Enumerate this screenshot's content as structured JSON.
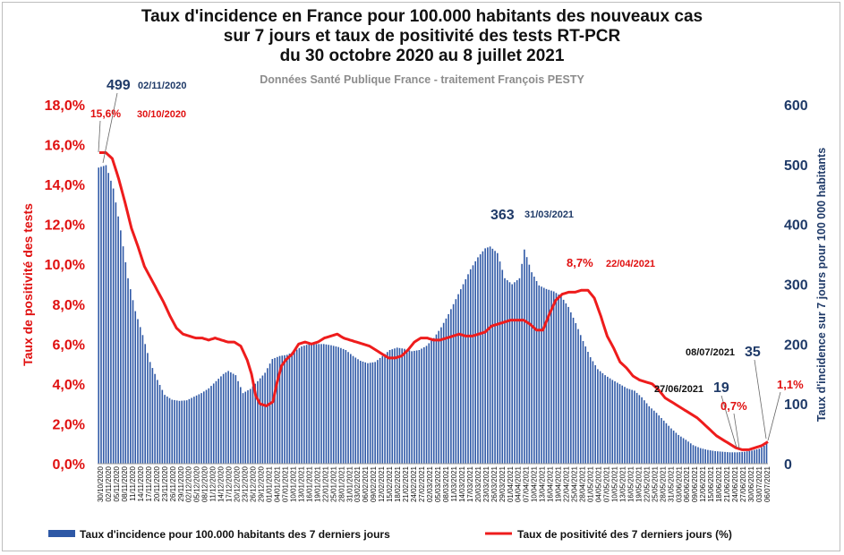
{
  "chart_data": {
    "type": "bar+line",
    "title": [
      "Taux d'incidence en France pour 100.000 habitants des nouveaux cas",
      "sur 7 jours et taux de positivité des tests RT-PCR",
      "du 30 octobre 2020 au 8 juillet 2021"
    ],
    "subtitle": "Données Santé Publique France - traitement François PESTY",
    "y_left_label": "Taux de positivité des tests",
    "y_right_label": "Taux d'incidence sur 7 jours pour 100 000 habitants",
    "y_left_ticks": [
      "0,0%",
      "2,0%",
      "4,0%",
      "6,0%",
      "8,0%",
      "10,0%",
      "12,0%",
      "14,0%",
      "16,0%",
      "18,0%"
    ],
    "y_right_ticks": [
      "0",
      "100",
      "200",
      "300",
      "400",
      "500",
      "600"
    ],
    "y_left_range": [
      0,
      18
    ],
    "y_right_range": [
      0,
      600
    ],
    "x_tick_labels": [
      "30/10/2020",
      "02/11/2020",
      "05/11/2020",
      "08/11/2020",
      "11/11/2020",
      "14/11/2020",
      "17/11/2020",
      "20/11/2020",
      "23/11/2020",
      "26/11/2020",
      "29/11/2020",
      "02/12/2020",
      "05/12/2020",
      "08/12/2020",
      "11/12/2020",
      "14/12/2020",
      "17/12/2020",
      "20/12/2020",
      "23/12/2020",
      "26/12/2020",
      "29/12/2020",
      "01/01/2021",
      "04/01/2021",
      "07/01/2021",
      "10/01/2021",
      "13/01/2021",
      "16/01/2021",
      "19/01/2021",
      "22/01/2021",
      "25/01/2021",
      "28/01/2021",
      "31/01/2021",
      "03/02/2021",
      "06/02/2021",
      "09/02/2021",
      "12/02/2021",
      "15/02/2021",
      "18/02/2021",
      "21/02/2021",
      "24/02/2021",
      "27/02/2021",
      "02/03/2021",
      "05/03/2021",
      "08/03/2021",
      "11/03/2021",
      "14/03/2021",
      "17/03/2021",
      "20/03/2021",
      "23/03/2021",
      "26/03/2021",
      "29/03/2021",
      "01/04/2021",
      "04/04/2021",
      "07/04/2021",
      "10/04/2021",
      "13/04/2021",
      "16/04/2021",
      "19/04/2021",
      "22/04/2021",
      "25/04/2021",
      "28/04/2021",
      "01/05/2021",
      "04/05/2021",
      "07/05/2021",
      "10/05/2021",
      "13/05/2021",
      "16/05/2021",
      "19/05/2021",
      "22/05/2021",
      "25/05/2021",
      "28/05/2021",
      "31/05/2021",
      "03/06/2021",
      "06/06/2021",
      "09/06/2021",
      "12/06/2021",
      "15/06/2021",
      "18/06/2021",
      "21/06/2021",
      "24/06/2021",
      "27/06/2021",
      "30/06/2021",
      "03/07/2021",
      "06/07/2021"
    ],
    "incidence_anchors": [
      [
        0,
        495
      ],
      [
        3,
        499
      ],
      [
        6,
        460
      ],
      [
        9,
        390
      ],
      [
        12,
        310
      ],
      [
        15,
        255
      ],
      [
        18,
        215
      ],
      [
        21,
        170
      ],
      [
        24,
        140
      ],
      [
        27,
        115
      ],
      [
        30,
        107
      ],
      [
        33,
        105
      ],
      [
        36,
        106
      ],
      [
        39,
        112
      ],
      [
        42,
        118
      ],
      [
        45,
        126
      ],
      [
        48,
        138
      ],
      [
        51,
        150
      ],
      [
        53,
        155
      ],
      [
        56,
        148
      ],
      [
        59,
        118
      ],
      [
        62,
        125
      ],
      [
        65,
        138
      ],
      [
        68,
        152
      ],
      [
        71,
        175
      ],
      [
        74,
        180
      ],
      [
        77,
        182
      ],
      [
        80,
        188
      ],
      [
        83,
        196
      ],
      [
        86,
        200
      ],
      [
        89,
        200
      ],
      [
        92,
        200
      ],
      [
        95,
        198
      ],
      [
        98,
        195
      ],
      [
        101,
        190
      ],
      [
        104,
        180
      ],
      [
        107,
        172
      ],
      [
        110,
        168
      ],
      [
        113,
        170
      ],
      [
        116,
        180
      ],
      [
        119,
        190
      ],
      [
        122,
        194
      ],
      [
        125,
        192
      ],
      [
        128,
        188
      ],
      [
        131,
        190
      ],
      [
        134,
        197
      ],
      [
        137,
        210
      ],
      [
        140,
        228
      ],
      [
        143,
        250
      ],
      [
        146,
        275
      ],
      [
        149,
        300
      ],
      [
        152,
        325
      ],
      [
        155,
        345
      ],
      [
        158,
        360
      ],
      [
        160,
        363
      ],
      [
        163,
        352
      ],
      [
        166,
        310
      ],
      [
        169,
        300
      ],
      [
        172,
        310
      ],
      [
        174,
        358
      ],
      [
        177,
        320
      ],
      [
        180,
        298
      ],
      [
        183,
        292
      ],
      [
        186,
        288
      ],
      [
        189,
        280
      ],
      [
        192,
        262
      ],
      [
        195,
        235
      ],
      [
        198,
        205
      ],
      [
        201,
        178
      ],
      [
        204,
        158
      ],
      [
        207,
        148
      ],
      [
        210,
        140
      ],
      [
        213,
        133
      ],
      [
        216,
        126
      ],
      [
        219,
        122
      ],
      [
        222,
        111
      ],
      [
        225,
        96
      ],
      [
        228,
        85
      ],
      [
        231,
        72
      ],
      [
        234,
        59
      ],
      [
        237,
        48
      ],
      [
        240,
        40
      ],
      [
        243,
        31
      ],
      [
        246,
        26
      ],
      [
        249,
        23
      ],
      [
        252,
        21
      ],
      [
        255,
        20
      ],
      [
        258,
        19
      ],
      [
        261,
        19
      ],
      [
        264,
        20
      ],
      [
        267,
        22
      ],
      [
        270,
        25
      ],
      [
        272,
        30
      ],
      [
        273,
        35
      ]
    ],
    "positivity_anchors": [
      [
        0,
        15.6
      ],
      [
        3,
        15.6
      ],
      [
        6,
        15.3
      ],
      [
        9,
        14.3
      ],
      [
        12,
        13.1
      ],
      [
        15,
        11.8
      ],
      [
        18,
        10.9
      ],
      [
        21,
        9.9
      ],
      [
        24,
        9.3
      ],
      [
        27,
        8.7
      ],
      [
        30,
        8.1
      ],
      [
        33,
        7.4
      ],
      [
        36,
        6.8
      ],
      [
        39,
        6.5
      ],
      [
        42,
        6.4
      ],
      [
        45,
        6.3
      ],
      [
        48,
        6.3
      ],
      [
        51,
        6.2
      ],
      [
        54,
        6.3
      ],
      [
        57,
        6.2
      ],
      [
        60,
        6.1
      ],
      [
        63,
        6.1
      ],
      [
        66,
        5.9
      ],
      [
        69,
        5.2
      ],
      [
        71,
        4.5
      ],
      [
        73,
        3.4
      ],
      [
        75,
        3.0
      ],
      [
        78,
        2.9
      ],
      [
        81,
        3.1
      ],
      [
        83,
        4.1
      ],
      [
        85,
        4.9
      ],
      [
        87,
        5.2
      ],
      [
        90,
        5.5
      ],
      [
        93,
        6.0
      ],
      [
        96,
        6.1
      ],
      [
        99,
        6.0
      ],
      [
        102,
        6.1
      ],
      [
        105,
        6.3
      ],
      [
        108,
        6.4
      ],
      [
        111,
        6.5
      ],
      [
        114,
        6.3
      ],
      [
        117,
        6.2
      ],
      [
        120,
        6.1
      ],
      [
        123,
        6.0
      ],
      [
        126,
        5.9
      ],
      [
        129,
        5.7
      ],
      [
        132,
        5.5
      ],
      [
        135,
        5.3
      ],
      [
        138,
        5.3
      ],
      [
        141,
        5.4
      ],
      [
        144,
        5.7
      ],
      [
        147,
        6.1
      ],
      [
        150,
        6.3
      ],
      [
        153,
        6.3
      ],
      [
        156,
        6.2
      ],
      [
        159,
        6.2
      ],
      [
        162,
        6.3
      ],
      [
        165,
        6.4
      ],
      [
        168,
        6.5
      ],
      [
        171,
        6.4
      ],
      [
        174,
        6.4
      ],
      [
        177,
        6.5
      ],
      [
        180,
        6.6
      ],
      [
        183,
        6.9
      ],
      [
        186,
        7.0
      ],
      [
        189,
        7.1
      ],
      [
        192,
        7.2
      ],
      [
        195,
        7.2
      ],
      [
        198,
        7.2
      ],
      [
        201,
        7.0
      ],
      [
        204,
        6.7
      ],
      [
        207,
        6.7
      ],
      [
        210,
        7.5
      ],
      [
        213,
        8.2
      ],
      [
        216,
        8.5
      ],
      [
        219,
        8.6
      ],
      [
        222,
        8.6
      ],
      [
        225,
        8.7
      ],
      [
        228,
        8.7
      ],
      [
        231,
        8.3
      ],
      [
        234,
        7.4
      ],
      [
        237,
        6.4
      ],
      [
        240,
        5.8
      ],
      [
        243,
        5.1
      ],
      [
        246,
        4.8
      ],
      [
        249,
        4.4
      ],
      [
        252,
        4.2
      ],
      [
        255,
        4.1
      ],
      [
        258,
        4.0
      ],
      [
        261,
        3.7
      ],
      [
        264,
        3.3
      ],
      [
        267,
        3.1
      ],
      [
        270,
        2.9
      ],
      [
        273,
        2.7
      ],
      [
        276,
        2.5
      ],
      [
        279,
        2.3
      ],
      [
        282,
        2.0
      ],
      [
        285,
        1.7
      ],
      [
        288,
        1.4
      ],
      [
        291,
        1.2
      ],
      [
        294,
        1.0
      ],
      [
        297,
        0.8
      ],
      [
        300,
        0.7
      ],
      [
        303,
        0.7
      ],
      [
        306,
        0.8
      ],
      [
        309,
        0.9
      ],
      [
        312,
        1.1
      ]
    ],
    "series": [
      {
        "name": "Taux d'incidence  pour 100.000 habitants des 7 derniers jours",
        "axis": "right",
        "type": "bar",
        "color": "#2e58a6"
      },
      {
        "name": "Taux de positivité des 7 derniers jours (%)",
        "axis": "left",
        "type": "line",
        "color": "#ee1c1c"
      }
    ],
    "annotations": {
      "peak1_value": "499",
      "peak1_date": "02/11/2020",
      "pos1_value": "15,6%",
      "pos1_date": "30/10/2020",
      "peak2_value": "363",
      "peak2_date": "31/03/2021",
      "pos2_value": "8,7%",
      "pos2_date": "22/04/2021",
      "low_date": "27/06/2021",
      "low_value": "19",
      "pos_low": "0,7%",
      "last_date": "08/07/2021",
      "last_value": "35",
      "pos_last": "1,1%"
    },
    "colors": {
      "bars": "#2e58a6",
      "line": "#ee1c1c",
      "left_axis": "#e01010",
      "right_axis": "#1f3a68",
      "annotation_blue": "#1f3a68",
      "annotation_red": "#e01010",
      "subtitle": "#8c8c8c"
    }
  }
}
